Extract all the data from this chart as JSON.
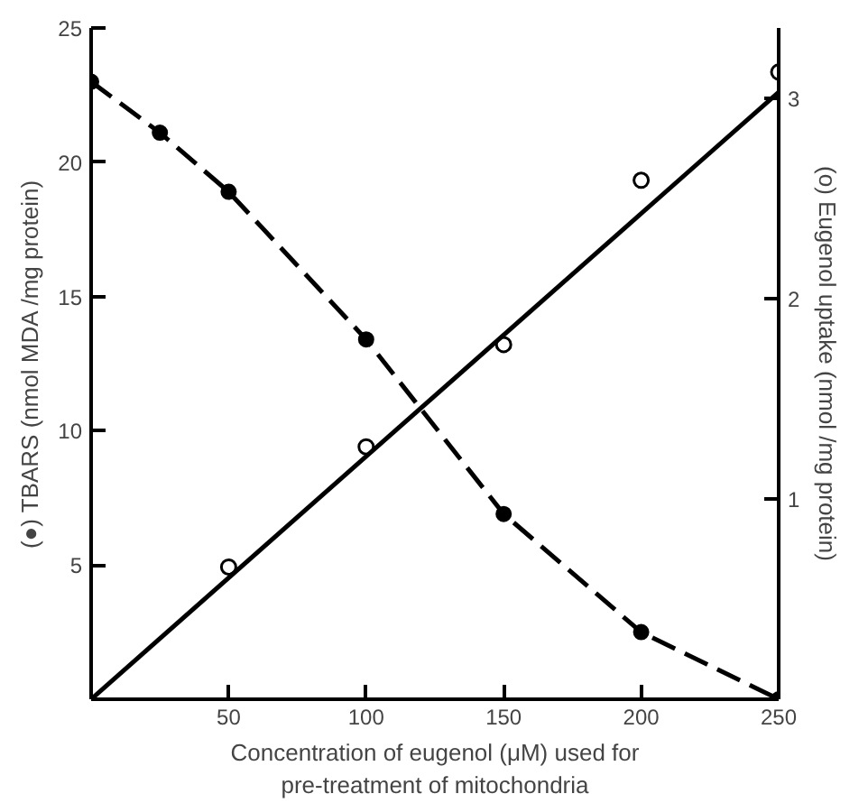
{
  "chart_data": {
    "type": "line",
    "xlabel": "Concentration of eugenol (μM) used for\npre-treatment of mitochondria",
    "ylabel": "(●) TBARS (nmol MDA /mg protein)",
    "y2label": "(o) Eugenol uptake (nmol /mg protein)",
    "xlim": [
      0,
      250
    ],
    "xticks": [
      50,
      100,
      150,
      200,
      250
    ],
    "ylim": [
      0,
      25
    ],
    "yticks": [
      5,
      10,
      15,
      20,
      25
    ],
    "y2lim": [
      0,
      3.35
    ],
    "y2ticks": [
      1,
      2,
      3
    ],
    "grid": false,
    "series": [
      {
        "color": "#000000",
        "marker": "circle",
        "line_style": "dashed",
        "x": [
          0,
          25,
          50,
          100,
          150,
          200,
          250
        ],
        "values": [
          23,
          21.1,
          18.9,
          13.4,
          6.9,
          2.5,
          0
        ]
      },
      {
        "type": "scatter",
        "axis": "y2",
        "color": "#000000",
        "marker": "circle",
        "x": [
          50,
          100,
          150,
          200,
          250
        ],
        "values": [
          0.66,
          1.26,
          1.77,
          2.59,
          3.13
        ]
      },
      {
        "axis": "y2",
        "color": "#000000",
        "marker": "none",
        "line_style": "solid",
        "x": [
          0,
          250
        ],
        "values": [
          0,
          3.03
        ]
      }
    ]
  }
}
